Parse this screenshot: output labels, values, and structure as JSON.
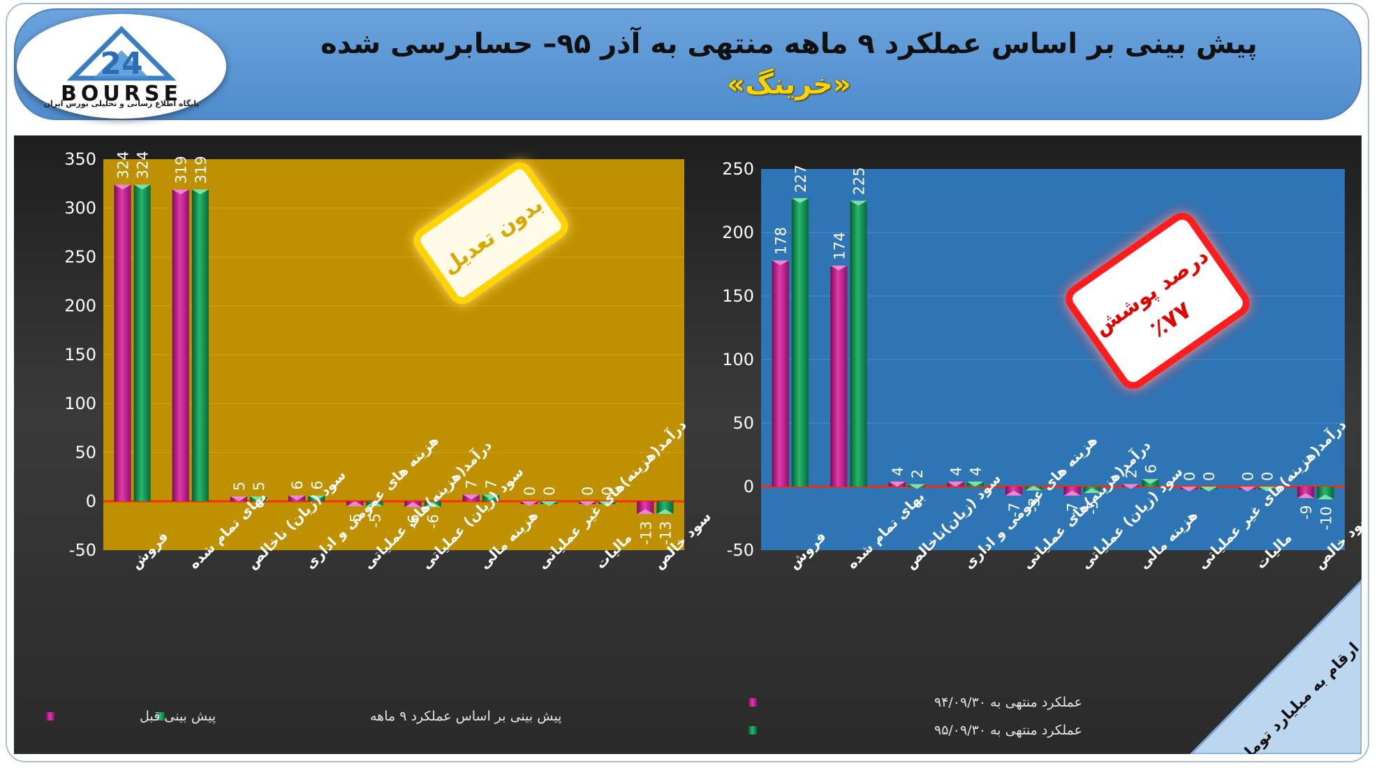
{
  "header": {
    "title": "پیش بینی بر اساس عملکرد ۹ ماهه منتهی به آذر ۹۵– حسابرسی شده",
    "symbol": "«خرینگ»"
  },
  "logo": {
    "wordmark": "BOURSE",
    "number": "24",
    "caption": "پایگاه اطلاع رسانی و تحلیلی بورس ایران"
  },
  "footer_note": "ارقام به میلیارد تومان",
  "colors": {
    "magenta": "#c2168f",
    "green": "#0f9150",
    "left_plot_bg": "#bf9000",
    "right_plot_bg": "#2e75b6",
    "zero_line": "#ff2a00"
  },
  "chart_data": [
    {
      "type": "bar",
      "categories": [
        "فروش",
        "بهای تمام شده",
        "سود (زیان) ناخالص",
        "هزینه های عمومی و اداری",
        "درآمد(هزینه)های عملیاتی",
        "سود (زیان) عملیاتی",
        "هزینه مالی",
        "درآمد(هزینه)های غیر عملیاتی",
        "مالیات",
        "سود خالص"
      ],
      "series": [
        {
          "name": "پیش بینی قبل",
          "values": [
            324,
            319,
            5,
            6,
            -5,
            -6,
            7,
            0,
            0,
            -13
          ]
        },
        {
          "name": "پیش بینی بر اساس عملکرد ۹ ماهه",
          "values": [
            324,
            319,
            5,
            6,
            -5,
            -6,
            7,
            0,
            0,
            -13
          ]
        }
      ],
      "ylim": [
        -50,
        350
      ],
      "yticks": [
        350,
        300,
        250,
        200,
        150,
        100,
        50,
        0,
        -50
      ],
      "badge": "بدون تعدیل",
      "legend_position": "bottom"
    },
    {
      "type": "bar",
      "categories": [
        "فروش",
        "بهای تمام شده",
        "سود (زیان)ناخالص",
        "هزینه های عمومی و اداری",
        "درآمد(هزینه)های عملیاتی",
        "سود (زیان) عملیاتی",
        "هزینه مالی",
        "درآمد(هزینه)های غیر عملیاتی",
        "مالیات",
        "سود خالص"
      ],
      "series": [
        {
          "name": "عملکرد منتهی به ۹۴/۰۹/۳۰",
          "values": [
            178,
            174,
            4,
            4,
            -7,
            -7,
            2,
            0,
            0,
            -9
          ]
        },
        {
          "name": "عملکرد منتهی به ۹۵/۰۹/۳۰",
          "values": [
            227,
            225,
            2,
            4,
            -3,
            -5,
            6,
            0,
            0,
            -10
          ]
        }
      ],
      "ylim": [
        -50,
        250
      ],
      "yticks": [
        250,
        200,
        150,
        100,
        50,
        0,
        -50
      ],
      "badge_line1": "درصد پوشش",
      "badge_line2": "٪۷۷",
      "legend_position": "bottom"
    }
  ]
}
